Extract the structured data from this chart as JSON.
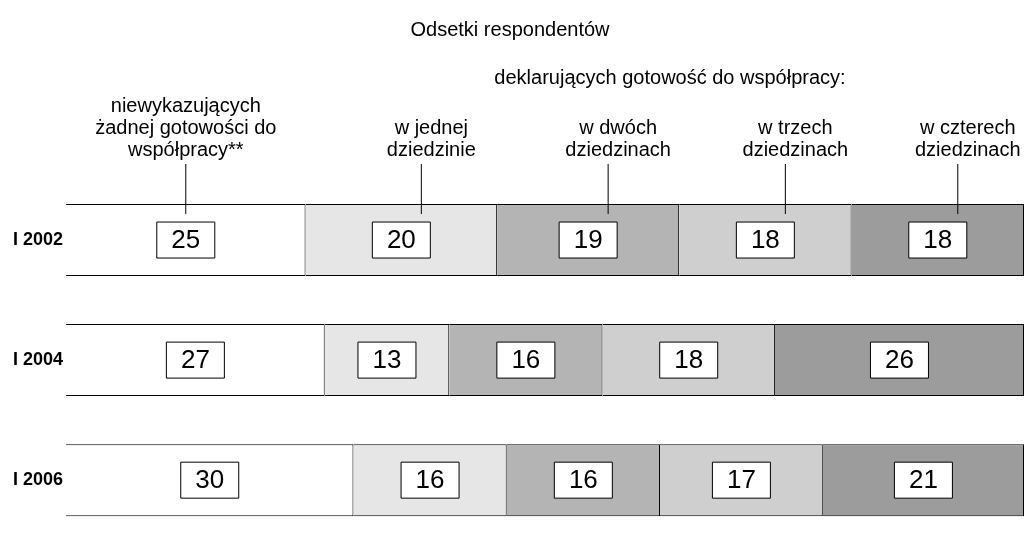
{
  "chart_data": {
    "type": "bar",
    "orientation": "horizontal",
    "stacked": true,
    "title": "Odsetki respondentów",
    "annotations": [
      "deklarujących gotowość do współpracy:"
    ],
    "categories": [
      "I 2002",
      "I 2004",
      "I 2006"
    ],
    "series": [
      {
        "name": "niewykazujących żadnej gotowości do współpracy**",
        "color": "#ffffff",
        "values": [
          25,
          27,
          30
        ]
      },
      {
        "name": "w jednej dziedzinie",
        "color": "#e6e6e6",
        "values": [
          20,
          13,
          16
        ]
      },
      {
        "name": "w dwóch dziedzinach",
        "color": "#b4b4b4",
        "values": [
          19,
          16,
          16
        ]
      },
      {
        "name": "w trzech dziedzinach",
        "color": "#cfcfcf",
        "values": [
          18,
          18,
          17
        ]
      },
      {
        "name": "w czterech dziedzinach",
        "color": "#9c9c9c",
        "values": [
          18,
          26,
          21
        ]
      }
    ],
    "data_labels": true,
    "legend": false,
    "grid": false
  }
}
